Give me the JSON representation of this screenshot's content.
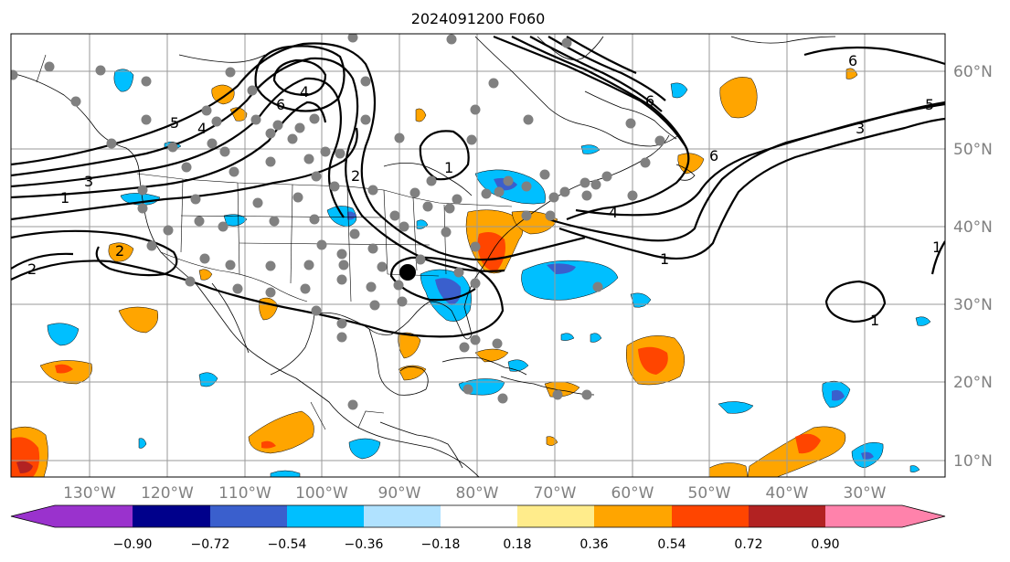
{
  "title": "2024091200 F060",
  "lon_labels": [
    "130°W",
    "120°W",
    "110°W",
    "100°W",
    "90°W",
    "80°W",
    "70°W",
    "60°W",
    "50°W",
    "40°W",
    "30°W"
  ],
  "lat_labels": [
    "60°N",
    "50°N",
    "40°N",
    "30°N",
    "20°N",
    "10°N"
  ],
  "contour_labels": [
    "1",
    "2",
    "3",
    "4",
    "5",
    "6"
  ],
  "colorbar": {
    "tick_labels": [
      "−0.90",
      "−0.72",
      "−0.54",
      "−0.36",
      "−0.18",
      "0.18",
      "0.36",
      "0.54",
      "0.72",
      "0.90"
    ],
    "colors": [
      "#9a32cd",
      "#00008b",
      "#3a5fcd",
      "#00bfff",
      "#b0e2ff",
      "#ffffff",
      "#ffec8b",
      "#ffa500",
      "#ff4500",
      "#b22222",
      "#ff82ab"
    ]
  },
  "contour_color": "#000000",
  "obs_marker_color": "#808080",
  "storm_marker_color": "#000000"
}
